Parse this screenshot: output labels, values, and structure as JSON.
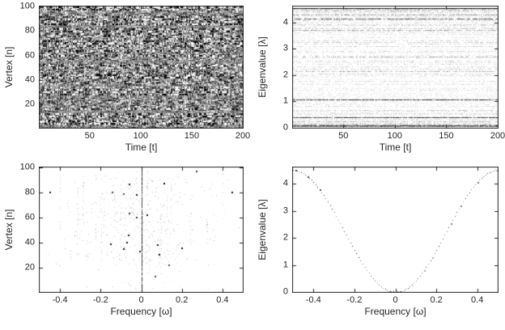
{
  "figure": {
    "background": "#ffffff",
    "text_color": "#262626",
    "axis_color": "#262626"
  },
  "chart_data": [
    {
      "id": "vertex-time-signal",
      "type": "heatmap",
      "xlabel": "Time [t]",
      "ylabel": "Vertex [n]",
      "xlim": [
        1,
        200
      ],
      "ylim": [
        1,
        100
      ],
      "xticks": [
        50,
        100,
        150,
        200
      ],
      "yticks": [
        20,
        40,
        60,
        80,
        100
      ],
      "rows": 100,
      "cols": 200,
      "seed": 7,
      "pattern": "dense-grayscale-random-noise-with-horizontal-banding",
      "grid": false
    },
    {
      "id": "eigenvalue-time-spectrum",
      "type": "heatmap",
      "xlabel": "Time [t]",
      "ylabel": "Eigenvalue [λ]",
      "xlim": [
        1,
        200
      ],
      "ylim": [
        0,
        4.6
      ],
      "xticks": [
        50,
        100,
        150,
        200
      ],
      "yticks": [
        0,
        1,
        2,
        3,
        4
      ],
      "rows": 100,
      "cols": 200,
      "seed": 13,
      "lambda_max": 4.55,
      "pattern": "dotted-horizontal-rows-one-per-eigenvalue-mostly-light-some-dark",
      "grid": false
    },
    {
      "id": "vertex-frequency-spectrum",
      "type": "scatter",
      "xlabel": "Frequency [ω]",
      "ylabel": "Vertex [n]",
      "xlim": [
        -0.5,
        0.5
      ],
      "ylim": [
        1,
        100
      ],
      "xticks": [
        -0.4,
        -0.2,
        0,
        0.2,
        0.4
      ],
      "yticks": [
        20,
        40,
        60,
        80,
        100
      ],
      "seed": 21,
      "pattern": "sparse-faint-dots-symmetric-about-zero-with-dark-vertical-line-at-zero-frequency",
      "notable_points": [
        [
          -0.45,
          80
        ],
        [
          0.45,
          80
        ],
        [
          -0.07,
          40
        ],
        [
          0.08,
          38
        ],
        [
          -0.15,
          39
        ],
        [
          0.2,
          36
        ],
        [
          -0.02,
          78
        ],
        [
          0.03,
          62
        ]
      ],
      "grid": false
    },
    {
      "id": "eigenvalue-frequency-dispersion",
      "type": "scatter",
      "xlabel": "Frequency [ω]",
      "ylabel": "Eigenvalue [λ]",
      "xlim": [
        -0.5,
        0.5
      ],
      "ylim": [
        0,
        4.6
      ],
      "xticks": [
        -0.4,
        -0.2,
        0,
        0.2,
        0.4
      ],
      "yticks": [
        0,
        1,
        2,
        3,
        4
      ],
      "seed": 31,
      "curve": "lambda = 2.25*(1-cos(2*pi*omega)), minimum 0 at omega=0, maximum 4.5 at omega=±0.5",
      "curve_amplitude": 2.25,
      "omega_step": 0.01,
      "grid": false
    }
  ]
}
